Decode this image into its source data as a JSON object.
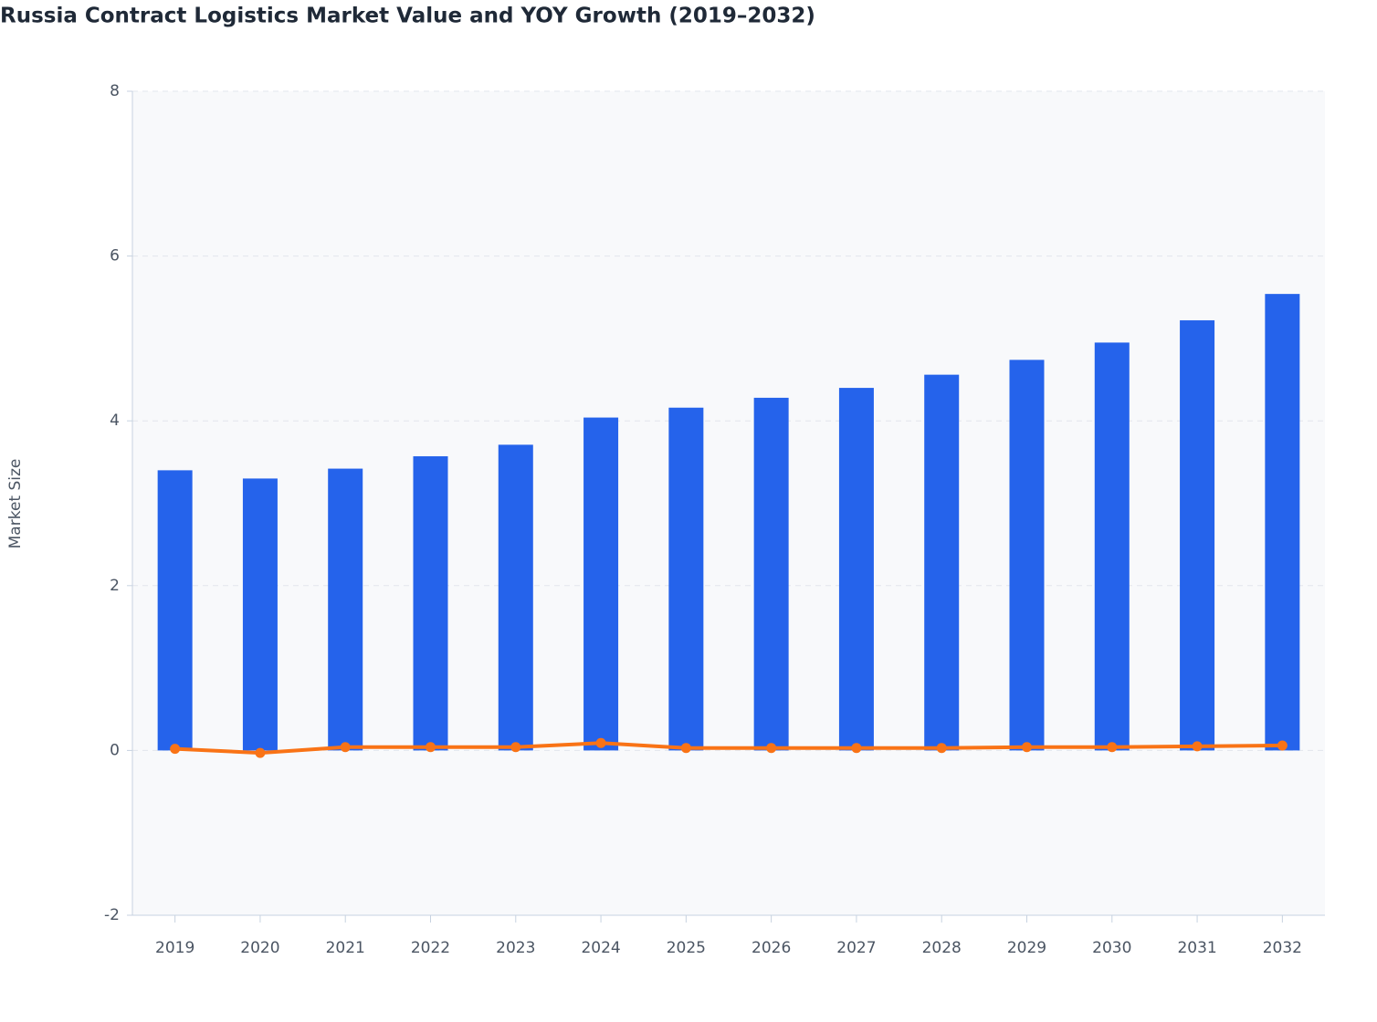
{
  "chart_data": {
    "type": "bar_line",
    "title": "Russia Contract Logistics Market Value and YOY Growth (2019–2032)",
    "y_label": "Market Size",
    "categories": [
      "2019",
      "2020",
      "2021",
      "2022",
      "2023",
      "2024",
      "2025",
      "2026",
      "2027",
      "2028",
      "2029",
      "2030",
      "2031",
      "2032"
    ],
    "series": [
      {
        "type": "bar",
        "color": "#2563eb",
        "values": [
          3.4,
          3.3,
          3.42,
          3.57,
          3.71,
          4.04,
          4.16,
          4.28,
          4.4,
          4.56,
          4.74,
          4.95,
          5.22,
          5.54
        ]
      },
      {
        "type": "line",
        "color": "#f97316",
        "values": [
          0.02,
          -0.03,
          0.04,
          0.04,
          0.04,
          0.09,
          0.03,
          0.03,
          0.03,
          0.03,
          0.04,
          0.04,
          0.05,
          0.06
        ]
      }
    ],
    "ylim": [
      -2,
      8
    ],
    "yticks": [
      -2,
      0,
      2,
      4,
      6,
      8
    ],
    "grid": true
  }
}
